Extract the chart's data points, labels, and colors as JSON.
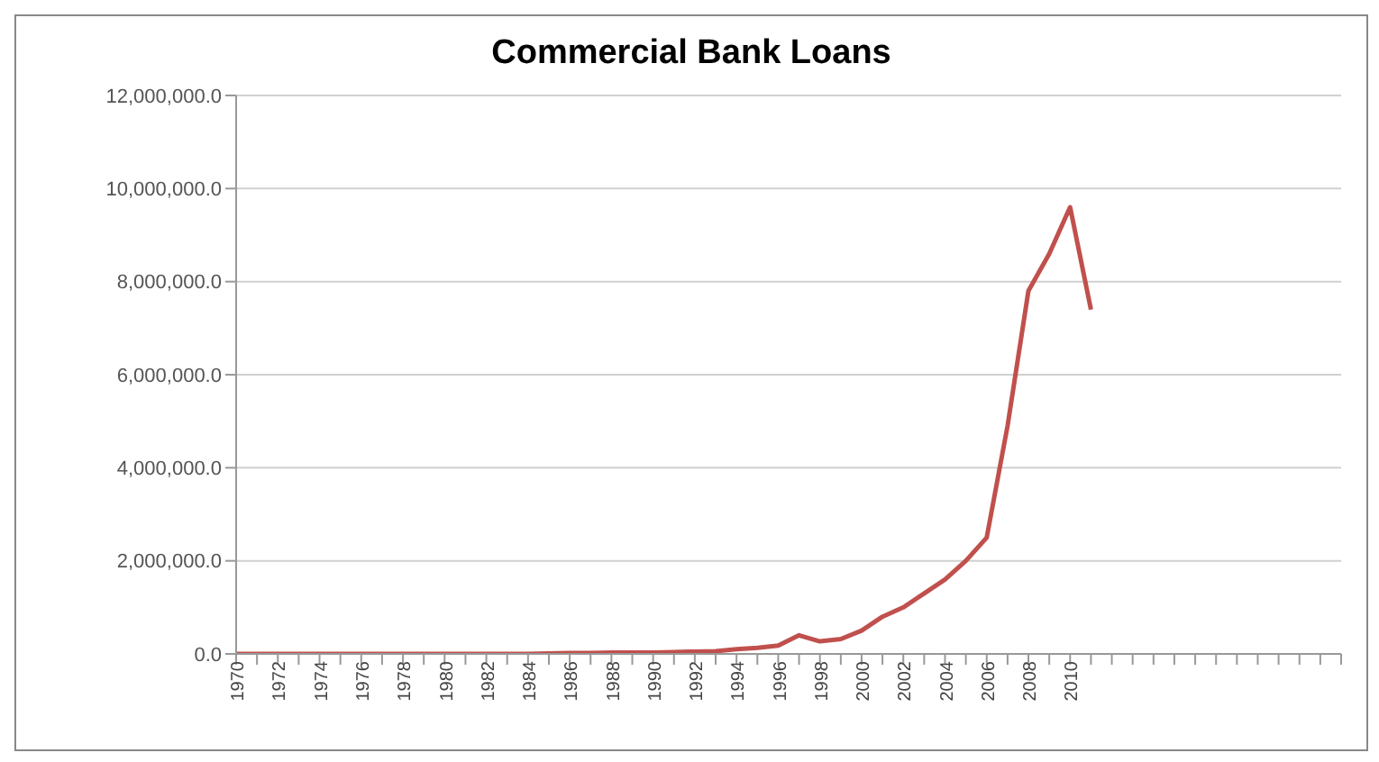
{
  "chart_data": {
    "type": "line",
    "title": "Commercial Bank Loans",
    "categories": [
      "1970",
      null,
      "1972",
      null,
      "1974",
      null,
      "1976",
      null,
      "1978",
      null,
      "1980",
      null,
      "1982",
      null,
      "1984",
      null,
      "1986",
      null,
      "1988",
      null,
      "1990",
      null,
      "1992",
      null,
      "1994",
      null,
      "1996",
      null,
      "1998",
      null,
      "2000",
      null,
      "2002",
      null,
      "2004",
      null,
      "2006",
      null,
      "2008",
      null,
      "2010",
      null,
      null,
      null,
      null,
      null,
      null,
      null,
      null,
      null,
      null,
      null,
      null,
      null
    ],
    "series": [
      {
        "color": "#c0504d",
        "values": [
          0,
          0,
          0,
          0,
          0,
          0,
          0,
          0,
          0,
          0,
          0,
          0,
          0,
          0,
          0,
          10000,
          20000,
          20000,
          30000,
          30000,
          30000,
          40000,
          50000,
          60000,
          100000,
          130000,
          180000,
          400000,
          270000,
          320000,
          500000,
          800000,
          1000000,
          1300000,
          1600000,
          2000000,
          2500000,
          4900000,
          7800000,
          8600000,
          9600000,
          7400000,
          null,
          null,
          null,
          null,
          null,
          null,
          null,
          null,
          null,
          null,
          null,
          null
        ]
      }
    ],
    "ylim": [
      0,
      12000000
    ],
    "yticks": [
      {
        "value": 0,
        "label": "0.0"
      },
      {
        "value": 2000000,
        "label": "2,000,000.0"
      },
      {
        "value": 4000000,
        "label": "4,000,000.0"
      },
      {
        "value": 6000000,
        "label": "6,000,000.0"
      },
      {
        "value": 8000000,
        "label": "8,000,000.0"
      },
      {
        "value": 10000000,
        "label": "10,000,000.0"
      },
      {
        "value": 12000000,
        "label": "12,000,000.0"
      }
    ],
    "grid": "y",
    "legend": false,
    "marker": "none",
    "line_style": "solid"
  }
}
